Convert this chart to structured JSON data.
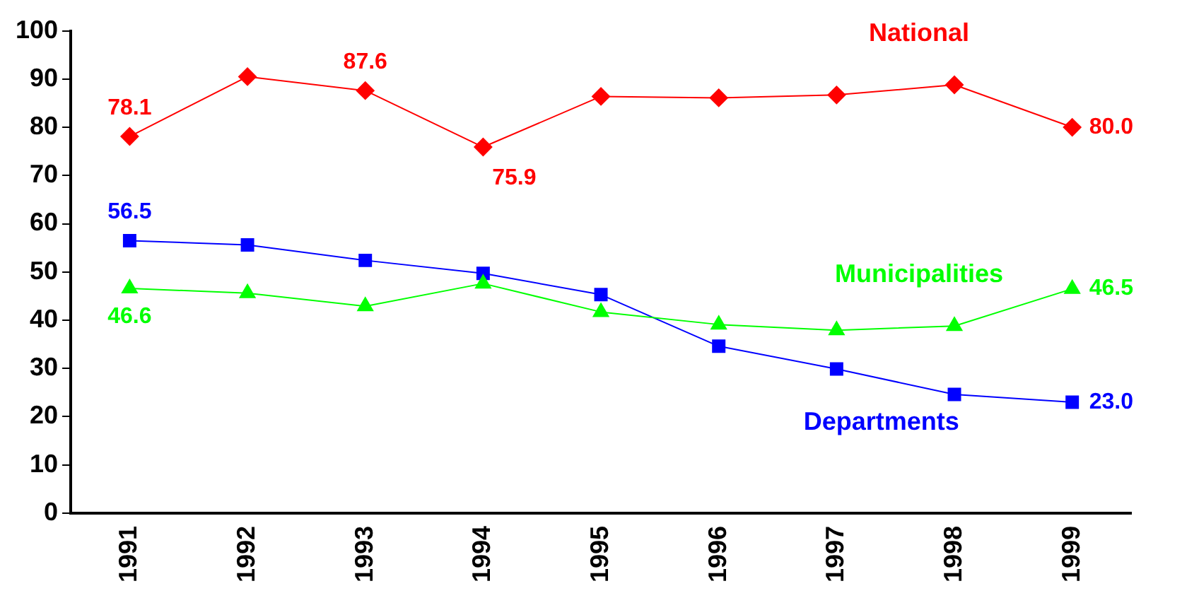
{
  "chart_data": {
    "type": "line",
    "categories": [
      "1991",
      "1992",
      "1993",
      "1994",
      "1995",
      "1996",
      "1997",
      "1998",
      "1999"
    ],
    "series": [
      {
        "name": "National",
        "color": "#ff0000",
        "marker": "diamond",
        "values": [
          78.1,
          90.5,
          87.6,
          75.9,
          86.4,
          86.1,
          86.7,
          88.8,
          80.0
        ],
        "value_labels": [
          "78.1",
          null,
          "87.6",
          "75.9",
          null,
          null,
          null,
          null,
          "80.0"
        ]
      },
      {
        "name": "Municipalities",
        "color": "#00ff00",
        "marker": "triangle",
        "values": [
          46.6,
          45.6,
          42.9,
          47.6,
          41.7,
          39.1,
          37.9,
          38.8,
          46.5
        ],
        "value_labels": [
          "46.6",
          null,
          null,
          null,
          null,
          null,
          null,
          null,
          "46.5"
        ]
      },
      {
        "name": "Departments",
        "color": "#0000ff",
        "marker": "square",
        "values": [
          56.5,
          55.6,
          52.4,
          49.7,
          45.3,
          34.6,
          29.9,
          24.6,
          23.0
        ],
        "value_labels": [
          "56.5",
          null,
          null,
          null,
          null,
          null,
          null,
          null,
          "23.0"
        ]
      }
    ],
    "ylim": [
      0,
      100
    ],
    "yticks": [
      0,
      10,
      20,
      30,
      40,
      50,
      60,
      70,
      80,
      90,
      100
    ],
    "grid": false,
    "legend": false,
    "line_style": "solid"
  }
}
